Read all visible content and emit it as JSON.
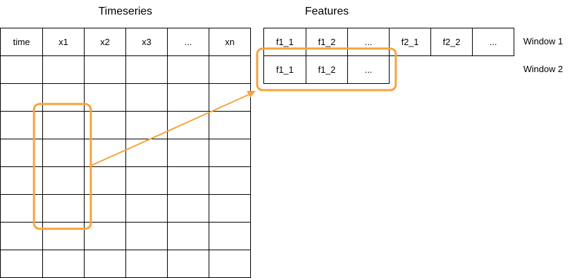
{
  "titles": {
    "timeseries": "Timeseries",
    "features": "Features"
  },
  "timeseries_table": {
    "headers": [
      "time",
      "x1",
      "x2",
      "x3",
      "...",
      "xn"
    ],
    "empty_rows": 8
  },
  "features": {
    "window1": {
      "label": "Window 1",
      "cells": [
        "f1_1",
        "f1_2",
        "...",
        "f2_1",
        "f2_2",
        "..."
      ]
    },
    "window2": {
      "label": "Window 2",
      "cells": [
        "f1_1",
        "f1_2",
        "..."
      ]
    }
  },
  "colors": {
    "highlight": "#F7A23B",
    "line": "#000000"
  }
}
